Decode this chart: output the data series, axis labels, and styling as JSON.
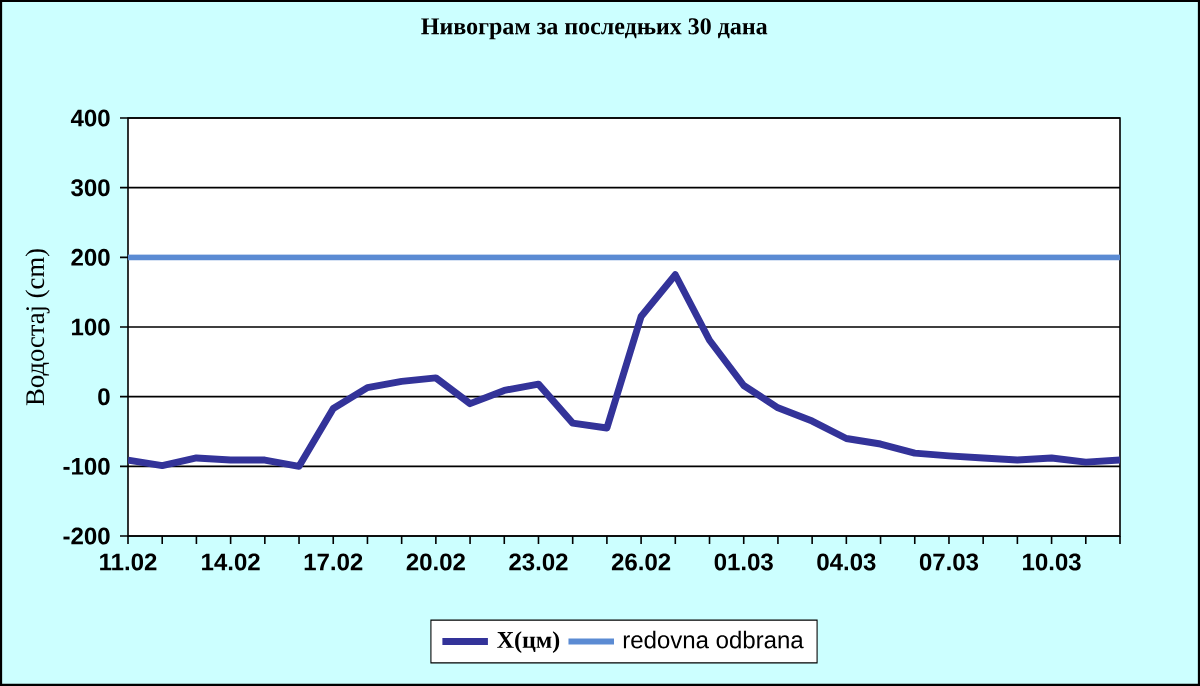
{
  "chart_data": {
    "type": "line",
    "title": "Нивограм за последњих 30 дана",
    "ylabel": "Водостај (cm)",
    "categories": [
      "11.02",
      null,
      null,
      "14.02",
      null,
      null,
      "17.02",
      null,
      null,
      "20.02",
      null,
      null,
      "23.02",
      null,
      null,
      "26.02",
      null,
      null,
      "01.03",
      null,
      null,
      "04.03",
      null,
      null,
      "07.03",
      null,
      null,
      "10.03",
      null,
      null
    ],
    "series": [
      {
        "name": "X(цм)",
        "color": "#333399",
        "values": [
          -91,
          -99,
          -88,
          -91,
          -91,
          -100,
          -17,
          13,
          22,
          27,
          -10,
          9,
          18,
          -38,
          -45,
          115,
          175,
          81,
          16,
          -16,
          -35,
          -60,
          -68,
          -81,
          -85,
          -88,
          -91,
          -88,
          -94,
          -91
        ]
      }
    ],
    "ref_lines": [
      {
        "axis": "y",
        "value": 200,
        "label": "redovna odbrana",
        "color": "#5b8bd3"
      }
    ],
    "ylim": [
      -200,
      400
    ],
    "yticks": [
      -200,
      -100,
      0,
      100,
      200,
      300,
      400
    ],
    "grid": "y",
    "legend": "bottom",
    "marker": "none",
    "line_style": "solid"
  }
}
